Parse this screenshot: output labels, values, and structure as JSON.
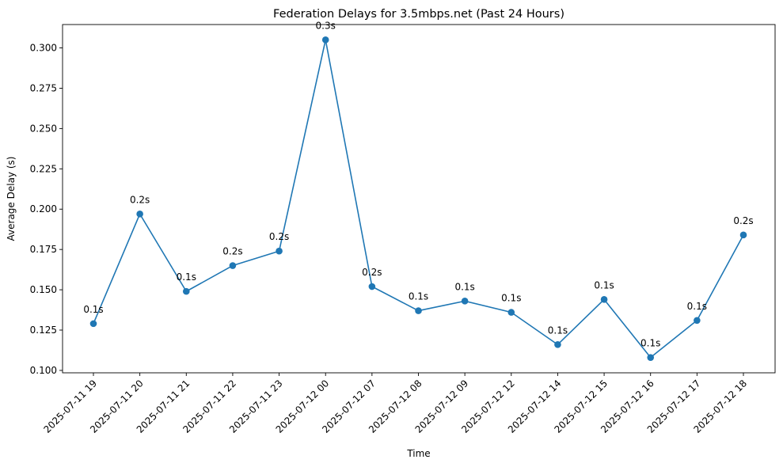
{
  "chart_data": {
    "type": "line",
    "title": "Federation Delays for 3.5mbps.net (Past 24 Hours)",
    "xlabel": "Time",
    "ylabel": "Average Delay (s)",
    "categories": [
      "2025-07-11 19",
      "2025-07-11 20",
      "2025-07-11 21",
      "2025-07-11 22",
      "2025-07-11 23",
      "2025-07-12 00",
      "2025-07-12 07",
      "2025-07-12 08",
      "2025-07-12 09",
      "2025-07-12 12",
      "2025-07-12 14",
      "2025-07-12 15",
      "2025-07-12 16",
      "2025-07-12 17",
      "2025-07-12 18"
    ],
    "series": [
      {
        "values": [
          0.129,
          0.197,
          0.149,
          0.165,
          0.174,
          0.305,
          0.152,
          0.137,
          0.143,
          0.136,
          0.116,
          0.144,
          0.108,
          0.131,
          0.184
        ],
        "labels": [
          "0.1s",
          "0.2s",
          "0.1s",
          "0.2s",
          "0.2s",
          "0.3s",
          "0.2s",
          "0.1s",
          "0.1s",
          "0.1s",
          "0.1s",
          "0.1s",
          "0.1s",
          "0.1s",
          "0.2s"
        ],
        "color": "#1f77b4"
      }
    ],
    "yticks": [
      "0.100",
      "0.125",
      "0.150",
      "0.175",
      "0.200",
      "0.225",
      "0.250",
      "0.275",
      "0.300"
    ],
    "ylim": [
      0.0985,
      0.3145
    ],
    "grid": false,
    "legend": "none"
  }
}
